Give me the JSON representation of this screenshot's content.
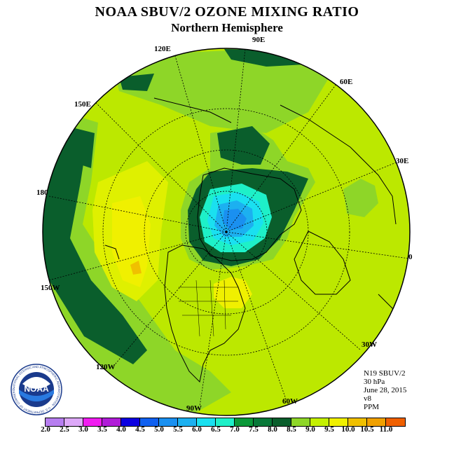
{
  "header": {
    "title": "NOAA SBUV/2 OZONE MIXING RATIO",
    "subtitle": "Northern Hemisphere"
  },
  "map": {
    "longitude_labels": {
      "90E": "90E",
      "60E": "60E",
      "30E": "30E",
      "0": "0",
      "30W": "30W",
      "60W": "60W",
      "90W": "90W",
      "120W": "120W",
      "150W": "150W",
      "180": "180",
      "150E": "150E",
      "120E": "120E"
    }
  },
  "info": {
    "satellite": "N19 SBUV/2",
    "level": "30 hPa",
    "date": "June 28, 2015",
    "version": "v8",
    "units": "PPM"
  },
  "legend": {
    "colors": [
      "#b77ef0",
      "#dda8f8",
      "#f01cf0",
      "#b01cd8",
      "#0c00e0",
      "#1060f0",
      "#1a90f0",
      "#1cb0f0",
      "#1ae0f0",
      "#1ef0c8",
      "#0a9838",
      "#087838",
      "#0a5e2c",
      "#8ed628",
      "#c4f000",
      "#f0f000",
      "#f0c000",
      "#f0a000",
      "#f06000",
      "#f00000",
      "#a06030"
    ],
    "labels": [
      "2.0",
      "2.5",
      "3.0",
      "3.5",
      "4.0",
      "4.5",
      "5.0",
      "5.5",
      "6.0",
      "6.5",
      "7.0",
      "7.5",
      "8.0",
      "8.5",
      "9.0",
      "9.5",
      "10.0",
      "10.5",
      "11.0"
    ]
  },
  "logo": {
    "text": "NOAA",
    "ring_text": "NATIONAL OCEANIC AND ATMOSPHERIC ADMINISTRATION · U.S. DEPARTMENT OF COMMERCE"
  }
}
